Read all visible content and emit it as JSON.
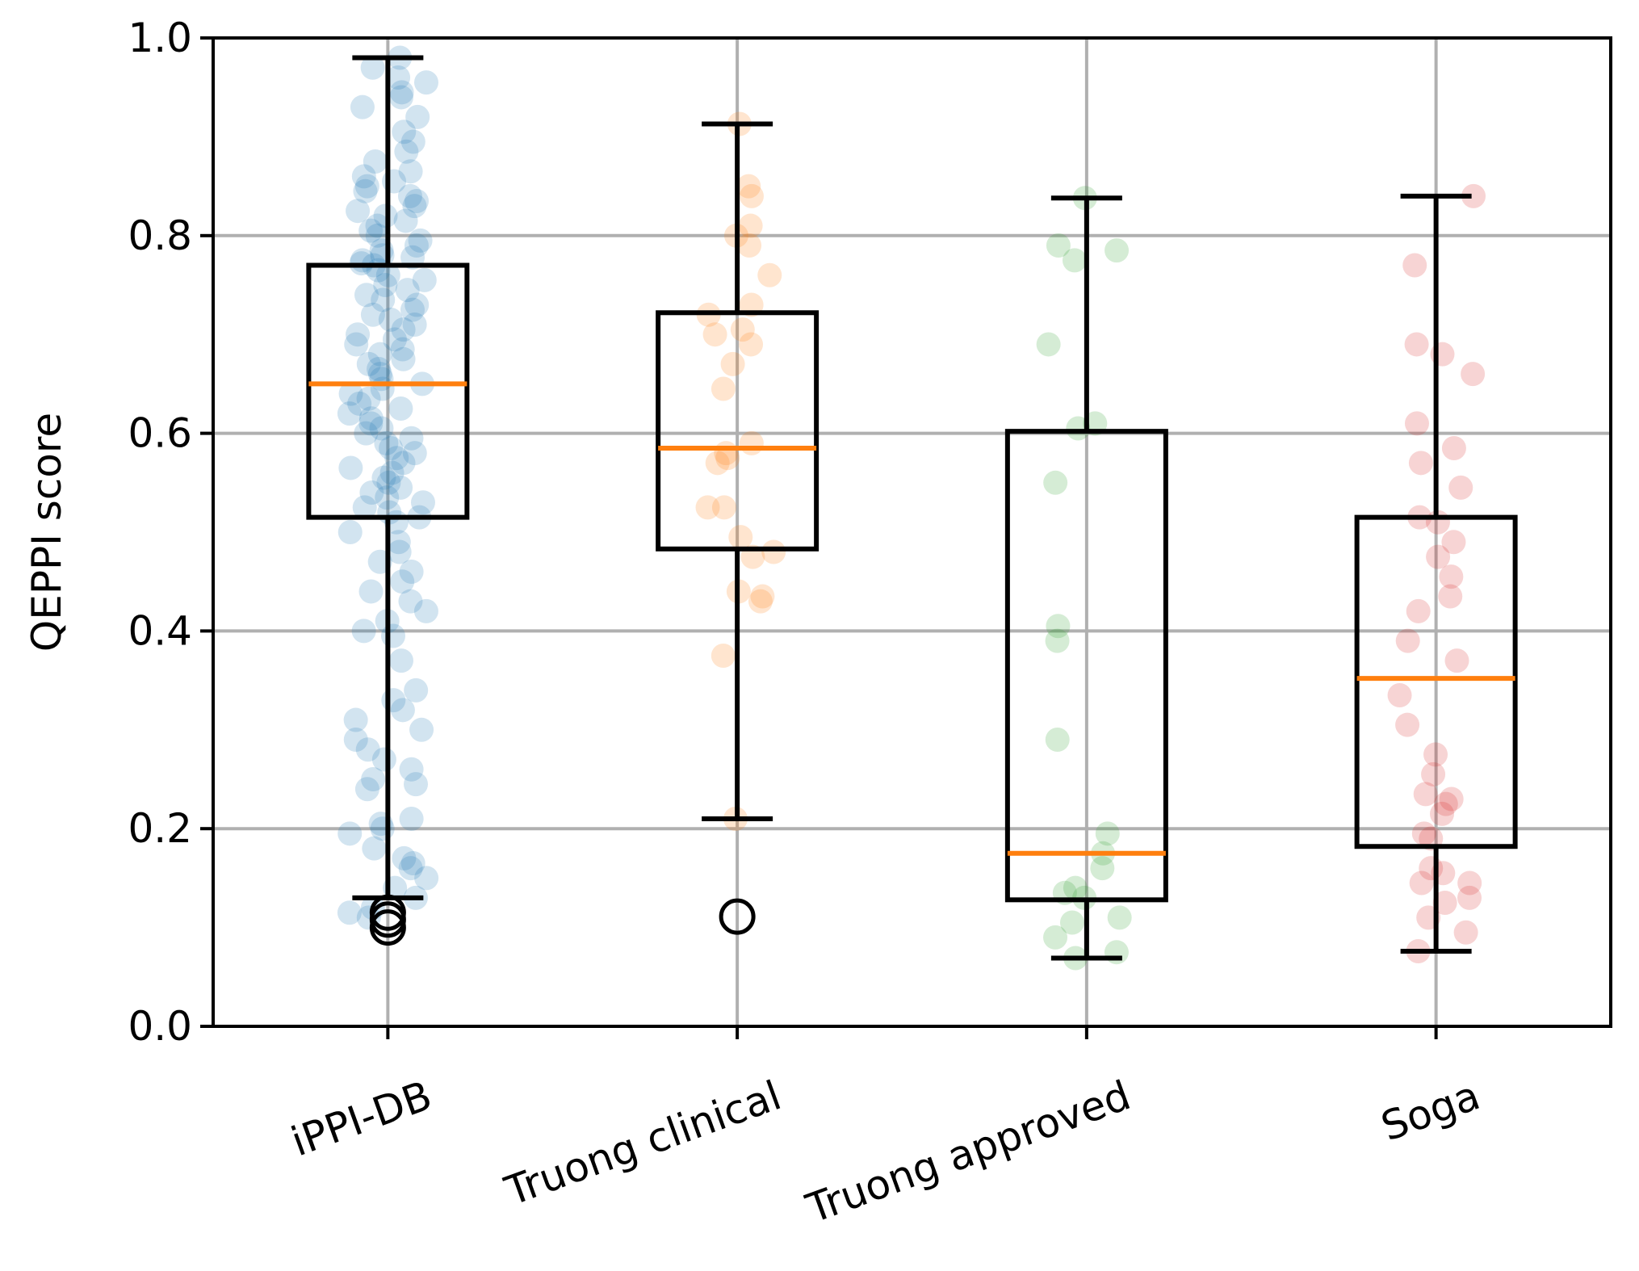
{
  "chart_data": {
    "type": "box",
    "title": "",
    "xlabel": "",
    "ylabel": "QEPPI score",
    "ylim": [
      0.0,
      1.0
    ],
    "yticks": [
      "0.0",
      "0.2",
      "0.4",
      "0.6",
      "0.8",
      "1.0"
    ],
    "grid": true,
    "categories": [
      "iPPI-DB",
      "Truong clinical",
      "Truong approved",
      "Soga"
    ],
    "colors": {
      "iPPI-DB": "#1f77b4",
      "Truong clinical": "#ff7f0e",
      "Truong approved": "#2ca02c",
      "Soga": "#d62728",
      "median": "#ff7f0e",
      "box": "#000000",
      "grid": "#b0b0b0"
    },
    "boxes": [
      {
        "name": "iPPI-DB",
        "whisker_low": 0.13,
        "q1": 0.515,
        "median": 0.65,
        "q3": 0.77,
        "whisker_high": 0.98,
        "outliers": [
          0.115,
          0.108,
          0.1
        ]
      },
      {
        "name": "Truong clinical",
        "whisker_low": 0.21,
        "q1": 0.483,
        "median": 0.585,
        "q3": 0.722,
        "whisker_high": 0.913,
        "outliers": [
          0.111
        ]
      },
      {
        "name": "Truong approved",
        "whisker_low": 0.069,
        "q1": 0.128,
        "median": 0.175,
        "q3": 0.602,
        "whisker_high": 0.838,
        "outliers": []
      },
      {
        "name": "Soga",
        "whisker_low": 0.076,
        "q1": 0.182,
        "median": 0.352,
        "q3": 0.515,
        "whisker_high": 0.84,
        "outliers": []
      }
    ],
    "points": {
      "iPPI-DB": [
        0.98,
        0.97,
        0.96,
        0.955,
        0.945,
        0.94,
        0.93,
        0.92,
        0.905,
        0.895,
        0.885,
        0.875,
        0.865,
        0.86,
        0.855,
        0.85,
        0.845,
        0.84,
        0.835,
        0.83,
        0.825,
        0.82,
        0.815,
        0.81,
        0.805,
        0.8,
        0.795,
        0.79,
        0.785,
        0.78,
        0.778,
        0.775,
        0.772,
        0.77,
        0.765,
        0.76,
        0.755,
        0.75,
        0.745,
        0.74,
        0.735,
        0.73,
        0.725,
        0.72,
        0.715,
        0.71,
        0.705,
        0.7,
        0.695,
        0.69,
        0.685,
        0.68,
        0.675,
        0.67,
        0.665,
        0.66,
        0.655,
        0.65,
        0.645,
        0.64,
        0.635,
        0.63,
        0.625,
        0.62,
        0.615,
        0.61,
        0.605,
        0.6,
        0.595,
        0.59,
        0.585,
        0.58,
        0.575,
        0.57,
        0.565,
        0.56,
        0.555,
        0.55,
        0.545,
        0.54,
        0.535,
        0.53,
        0.525,
        0.52,
        0.515,
        0.51,
        0.5,
        0.49,
        0.48,
        0.47,
        0.46,
        0.45,
        0.44,
        0.43,
        0.42,
        0.41,
        0.4,
        0.395,
        0.37,
        0.34,
        0.33,
        0.32,
        0.31,
        0.3,
        0.29,
        0.28,
        0.27,
        0.26,
        0.25,
        0.245,
        0.24,
        0.21,
        0.205,
        0.2,
        0.195,
        0.18,
        0.17,
        0.165,
        0.16,
        0.15,
        0.14,
        0.13,
        0.12,
        0.115,
        0.11
      ],
      "Truong clinical": [
        0.913,
        0.85,
        0.84,
        0.81,
        0.8,
        0.79,
        0.76,
        0.73,
        0.72,
        0.705,
        0.7,
        0.69,
        0.67,
        0.645,
        0.59,
        0.58,
        0.575,
        0.57,
        0.525,
        0.525,
        0.495,
        0.48,
        0.475,
        0.44,
        0.435,
        0.43,
        0.375,
        0.21
      ],
      "Truong approved": [
        0.838,
        0.79,
        0.785,
        0.775,
        0.69,
        0.61,
        0.605,
        0.55,
        0.405,
        0.39,
        0.29,
        0.195,
        0.175,
        0.16,
        0.14,
        0.135,
        0.13,
        0.11,
        0.105,
        0.09,
        0.075,
        0.069
      ],
      "Soga": [
        0.84,
        0.77,
        0.69,
        0.68,
        0.66,
        0.61,
        0.585,
        0.57,
        0.545,
        0.515,
        0.51,
        0.49,
        0.475,
        0.455,
        0.435,
        0.42,
        0.39,
        0.37,
        0.335,
        0.305,
        0.275,
        0.255,
        0.235,
        0.23,
        0.225,
        0.215,
        0.195,
        0.19,
        0.16,
        0.155,
        0.145,
        0.145,
        0.13,
        0.125,
        0.11,
        0.095,
        0.076
      ]
    }
  }
}
